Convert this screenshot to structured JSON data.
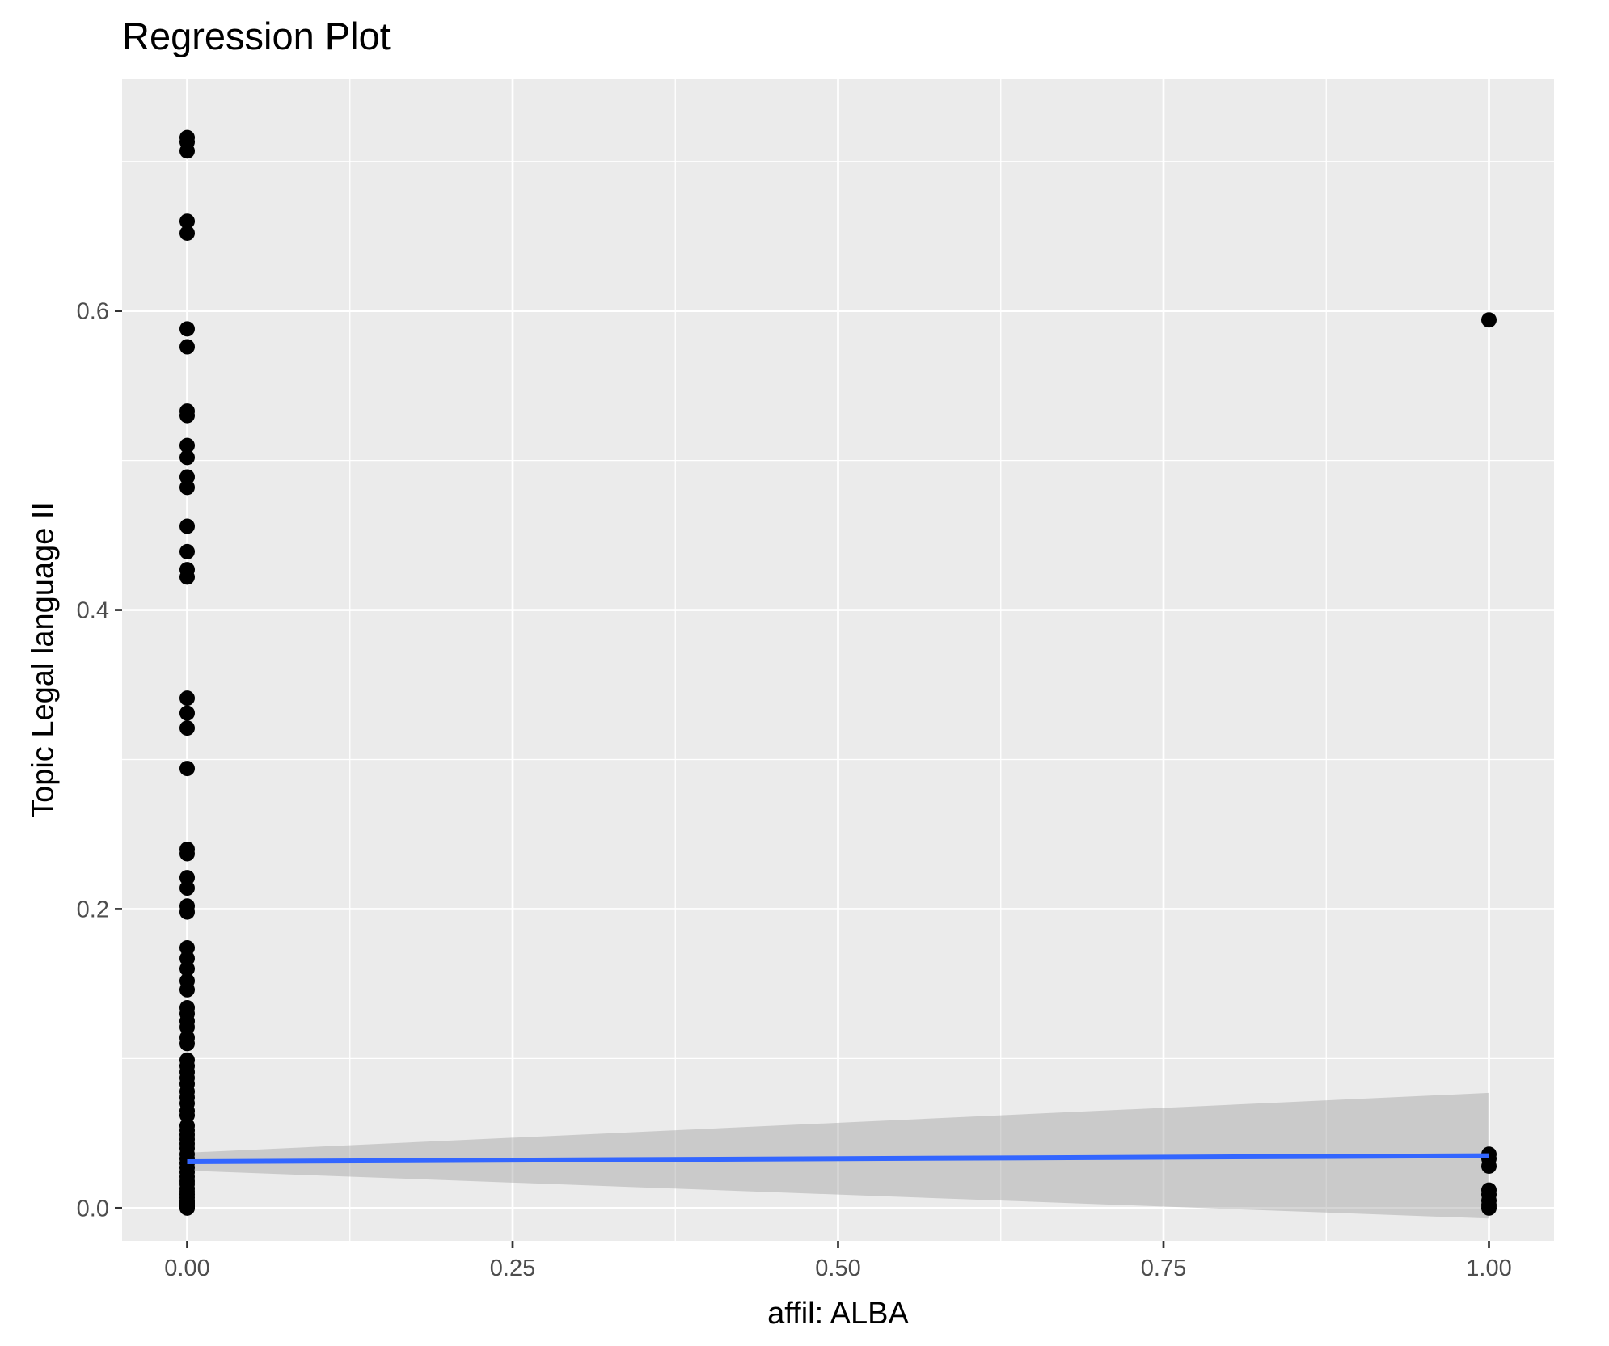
{
  "chart_data": {
    "type": "scatter",
    "title": "Regression Plot",
    "xlabel": "affil: ALBA",
    "ylabel": "Topic Legal language II",
    "xlim": [
      -0.05,
      1.05
    ],
    "ylim": [
      -0.022,
      0.755
    ],
    "x_ticks": [
      0.0,
      0.25,
      0.5,
      0.75,
      1.0
    ],
    "x_tick_labels": [
      "0.00",
      "0.25",
      "0.50",
      "0.75",
      "1.00"
    ],
    "y_ticks": [
      0.0,
      0.2,
      0.4,
      0.6
    ],
    "y_tick_labels": [
      "0.0",
      "0.2",
      "0.4",
      "0.6"
    ],
    "grid": true,
    "legend": "none",
    "colors": {
      "panel_background": "#ebebeb",
      "grid_major": "#ffffff",
      "points": "#000000",
      "fit_line": "#3366ff",
      "confidence_band": "#999999"
    },
    "series": [
      {
        "type": "scatter",
        "x": [
          0,
          0,
          0,
          0,
          0,
          0,
          0,
          0,
          0,
          0,
          0,
          0,
          0,
          0,
          0,
          0,
          0,
          0,
          0,
          0,
          0,
          0,
          0,
          0,
          0,
          0,
          0,
          0,
          0,
          0,
          0,
          0,
          0,
          0,
          0,
          0,
          0,
          0,
          0,
          0,
          0,
          0,
          0,
          0,
          0,
          0,
          0,
          0,
          0,
          0,
          0,
          0,
          0,
          0,
          0,
          0,
          0,
          0,
          0,
          0,
          0,
          0,
          0,
          0,
          0,
          0,
          0,
          0,
          0,
          0,
          0,
          0,
          0,
          0,
          1,
          1,
          1,
          1,
          1,
          1,
          1,
          1,
          1
        ],
        "y": [
          0.716,
          0.713,
          0.707,
          0.66,
          0.652,
          0.588,
          0.576,
          0.533,
          0.53,
          0.51,
          0.502,
          0.489,
          0.482,
          0.456,
          0.439,
          0.427,
          0.422,
          0.341,
          0.331,
          0.321,
          0.294,
          0.24,
          0.237,
          0.221,
          0.214,
          0.202,
          0.198,
          0.174,
          0.167,
          0.16,
          0.152,
          0.146,
          0.134,
          0.13,
          0.125,
          0.121,
          0.114,
          0.11,
          0.099,
          0.095,
          0.091,
          0.087,
          0.083,
          0.078,
          0.074,
          0.07,
          0.065,
          0.062,
          0.055,
          0.052,
          0.049,
          0.046,
          0.043,
          0.04,
          0.036,
          0.033,
          0.03,
          0.027,
          0.024,
          0.021,
          0.018,
          0.016,
          0.013,
          0.011,
          0.009,
          0.007,
          0.005,
          0.004,
          0.003,
          0.002,
          0.001,
          0.0005,
          0.0002,
          0.0,
          0.594,
          0.036,
          0.033,
          0.028,
          0.012,
          0.009,
          0.005,
          0.002,
          0.0
        ]
      }
    ],
    "fit": {
      "type": "line",
      "x": [
        0,
        1
      ],
      "y": [
        0.031,
        0.035
      ],
      "ci_lower": [
        0.025,
        -0.007
      ],
      "ci_upper": [
        0.037,
        0.077
      ]
    }
  }
}
